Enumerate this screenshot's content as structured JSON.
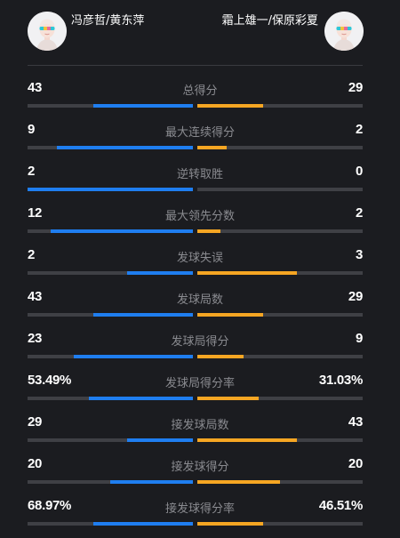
{
  "teams": {
    "left": {
      "name": "冯彦哲/黄东萍",
      "avatar_icon": "player-avatar-icon"
    },
    "right": {
      "name": "霜上雄一/保原彩夏",
      "avatar_icon": "player-avatar-icon"
    }
  },
  "colors": {
    "left": "#1f7ef0",
    "right": "#f6a623",
    "track": "#3f4045"
  },
  "stats": [
    {
      "label": "总得分",
      "left": "43",
      "right": "29",
      "left_fill": 0.6,
      "right_fill": 0.4
    },
    {
      "label": "最大连续得分",
      "left": "9",
      "right": "2",
      "left_fill": 0.82,
      "right_fill": 0.18
    },
    {
      "label": "逆转取胜",
      "left": "2",
      "right": "0",
      "left_fill": 1.0,
      "right_fill": 0.0
    },
    {
      "label": "最大领先分数",
      "left": "12",
      "right": "2",
      "left_fill": 0.86,
      "right_fill": 0.14
    },
    {
      "label": "发球失误",
      "left": "2",
      "right": "3",
      "left_fill": 0.4,
      "right_fill": 0.6
    },
    {
      "label": "发球局数",
      "left": "43",
      "right": "29",
      "left_fill": 0.6,
      "right_fill": 0.4
    },
    {
      "label": "发球局得分",
      "left": "23",
      "right": "9",
      "left_fill": 0.72,
      "right_fill": 0.28
    },
    {
      "label": "发球局得分率",
      "left": "53.49%",
      "right": "31.03%",
      "left_fill": 0.63,
      "right_fill": 0.37
    },
    {
      "label": "接发球局数",
      "left": "29",
      "right": "43",
      "left_fill": 0.4,
      "right_fill": 0.6
    },
    {
      "label": "接发球得分",
      "left": "20",
      "right": "20",
      "left_fill": 0.5,
      "right_fill": 0.5
    },
    {
      "label": "接发球得分率",
      "left": "68.97%",
      "right": "46.51%",
      "left_fill": 0.6,
      "right_fill": 0.4
    }
  ]
}
